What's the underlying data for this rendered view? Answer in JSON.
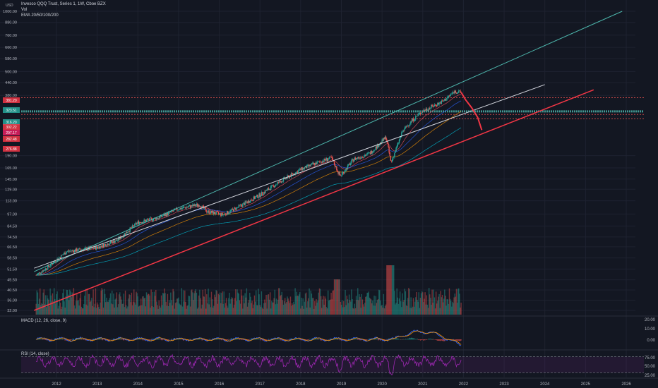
{
  "legend": {
    "title": "Invesco QQQ Trust, Series 1, 1W, Cboe BZX",
    "vol": "Vol",
    "ema": "EMA 20/50/100/200",
    "macd": "MACD (12, 26, close, 9)",
    "rsi": "RSI (14, close)"
  },
  "currency": "USD",
  "colors": {
    "background": "#131722",
    "up": "#26a69a",
    "down": "#ef5350",
    "upper_channel": "#4db6ac",
    "mid_channel": "#d1d4dc",
    "lower_channel": "#f23645",
    "projection": "#f23645",
    "rsi": "#9c27b0"
  },
  "chart_data": [
    {
      "type": "candlestick",
      "title": "Invesco QQQ Trust, Series 1, 1W, Cboe BZX",
      "scale": "log",
      "y_ticks": [
        "1000.00",
        "880.00",
        "760.00",
        "660.00",
        "580.00",
        "500.00",
        "440.00",
        "380.00",
        "190.00",
        "165.00",
        "145.00",
        "129.00",
        "113.00",
        "97.00",
        "84.50",
        "74.50",
        "66.50",
        "58.50",
        "51.50",
        "45.50",
        "40.50",
        "36.00",
        "32.00"
      ],
      "price_tags": [
        "381.20",
        "323.51",
        "316.20",
        "302.22",
        "297.17",
        "282.48",
        "276.88"
      ],
      "x_ticks": [
        "2012",
        "2013",
        "2014",
        "2015",
        "2016",
        "2017",
        "2018",
        "2019",
        "2020",
        "2021",
        "2022",
        "2023",
        "2024",
        "2025",
        "2026"
      ],
      "price_path": [
        [
          "2011.50",
          48
        ],
        [
          "2011.75",
          52
        ],
        [
          "2012.25",
          63
        ],
        [
          "2012.75",
          65
        ],
        [
          "2013.00",
          66
        ],
        [
          "2013.50",
          72
        ],
        [
          "2014.00",
          88
        ],
        [
          "2014.50",
          93
        ],
        [
          "2015.00",
          103
        ],
        [
          "2015.50",
          108
        ],
        [
          "2015.70",
          100
        ],
        [
          "2016.10",
          96
        ],
        [
          "2016.50",
          106
        ],
        [
          "2017.00",
          121
        ],
        [
          "2017.50",
          141
        ],
        [
          "2018.00",
          162
        ],
        [
          "2018.50",
          178
        ],
        [
          "2018.75",
          185
        ],
        [
          "2018.97",
          150
        ],
        [
          "2019.30",
          182
        ],
        [
          "2019.70",
          195
        ],
        [
          "2020.10",
          235
        ],
        [
          "2020.22",
          175
        ],
        [
          "2020.50",
          250
        ],
        [
          "2020.70",
          280
        ],
        [
          "2021.00",
          318
        ],
        [
          "2021.50",
          355
        ],
        [
          "2021.78",
          398
        ],
        [
          "2021.95",
          392
        ]
      ],
      "projection": [
        [
          "2021.95",
          392
        ],
        [
          "2022.05",
          362
        ],
        [
          "2022.20",
          330
        ],
        [
          "2022.35",
          295
        ],
        [
          "2022.45",
          255
        ]
      ],
      "lines": {
        "upper": [
          [
            "2011.45",
            50
          ],
          [
            "2025.90",
            1000
          ]
        ],
        "middle": [
          [
            "2011.45",
            52
          ],
          [
            "2024.00",
            430
          ]
        ],
        "lower": [
          [
            "2011.45",
            32
          ],
          [
            "2025.20",
            405
          ]
        ]
      },
      "horizontal_levels": [
        370,
        316,
        305,
        290
      ]
    },
    {
      "type": "bar",
      "title": "Vol",
      "description_series": "weekly volume histogram"
    },
    {
      "type": "line",
      "title": "MACD (12, 26, close, 9)",
      "y_ticks": [
        "20.00",
        "10.00",
        "0.00"
      ]
    },
    {
      "type": "line",
      "title": "RSI (14, close)",
      "y_ticks": [
        "75.00",
        "50.00",
        "25.00"
      ],
      "bands": [
        70,
        30
      ]
    }
  ]
}
